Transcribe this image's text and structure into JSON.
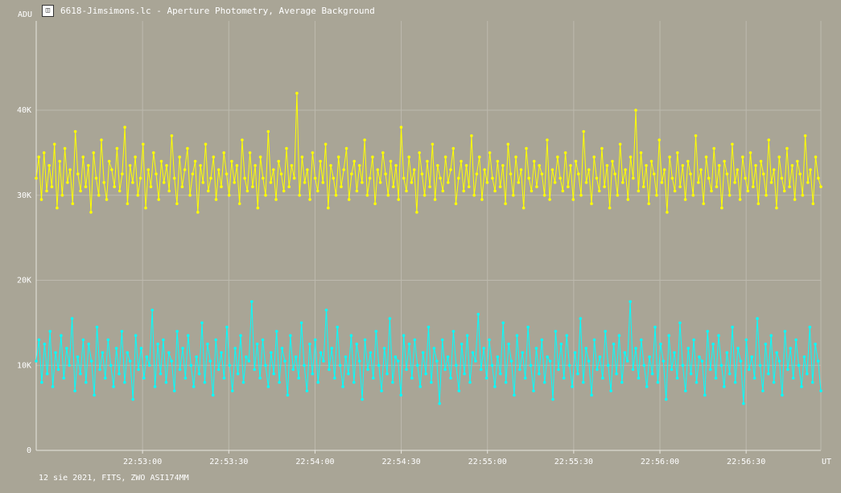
{
  "window": {
    "title": "6618-Jimsimons.lc - Aperture Photometry, Average Background",
    "icon": "lightcurve-app-icon"
  },
  "footer": "12 sie 2021, FITS, ZWO ASI174MM",
  "chart_data": {
    "type": "line",
    "title": "",
    "ylabel": "ADU",
    "xlabel": "UT",
    "ylim": [
      0,
      50500
    ],
    "xlim": [
      "22:52:23",
      "22:56:56"
    ],
    "y_ticks": [
      {
        "label": "0",
        "value": 0
      },
      {
        "label": "10K",
        "value": 10000
      },
      {
        "label": "20K",
        "value": 20000
      },
      {
        "label": "30K",
        "value": 30000
      },
      {
        "label": "40K",
        "value": 40000
      }
    ],
    "x_ticks": [
      {
        "label": "22:53:00",
        "value": "22:53:00"
      },
      {
        "label": "22:53:30",
        "value": "22:53:30"
      },
      {
        "label": "22:54:00",
        "value": "22:54:00"
      },
      {
        "label": "22:54:30",
        "value": "22:54:30"
      },
      {
        "label": "22:55:00",
        "value": "22:55:00"
      },
      {
        "label": "22:55:30",
        "value": "22:55:30"
      },
      {
        "label": "22:56:00",
        "value": "22:56:00"
      },
      {
        "label": "22:56:30",
        "value": "22:56:30"
      }
    ],
    "grid": true,
    "colors": {
      "background": "#a9a596",
      "grid": "#bdbaae",
      "axis": "#e8e6df",
      "text": "#ffffff"
    },
    "series": [
      {
        "color": "#ffff00",
        "values": [
          32000,
          34500,
          29500,
          35000,
          30500,
          33500,
          31000,
          36000,
          28500,
          34000,
          30000,
          35500,
          31500,
          33000,
          29000,
          37500,
          32500,
          30500,
          34500,
          31000,
          33500,
          28000,
          35000,
          32000,
          30000,
          36500,
          31500,
          29500,
          34000,
          33000,
          31000,
          35500,
          30500,
          32500,
          38000,
          29000,
          33500,
          31500,
          34500,
          30000,
          32000,
          36000,
          28500,
          33000,
          31000,
          35000,
          32500,
          29500,
          34000,
          31500,
          33500,
          30500,
          37000,
          32000,
          29000,
          34500,
          31000,
          33000,
          35500,
          30000,
          32500,
          34000,
          28000,
          33500,
          31500,
          36000,
          30500,
          32000,
          34500,
          29500,
          33000,
          31000,
          35000,
          32500,
          30000,
          34000,
          31500,
          33500,
          29000,
          36500,
          32000,
          30500,
          35000,
          31000,
          33500,
          28500,
          34500,
          32000,
          30000,
          37500,
          31500,
          33000,
          29500,
          34000,
          32500,
          30500,
          35500,
          31000,
          33500,
          32000,
          42000,
          30000,
          34500,
          31500,
          33000,
          29500,
          35000,
          32000,
          30500,
          34000,
          31500,
          36000,
          28500,
          33500,
          32000,
          30000,
          34500,
          31000,
          33000,
          35500,
          29500,
          32500,
          34000,
          30500,
          33500,
          31500,
          36500,
          30000,
          32000,
          34500,
          29000,
          33000,
          31500,
          35000,
          32500,
          30000,
          34000,
          31000,
          33500,
          29500,
          38000,
          32000,
          30500,
          34500,
          31500,
          33000,
          28000,
          35000,
          32500,
          30000,
          34000,
          31000,
          36000,
          29500,
          33500,
          32000,
          30500,
          34500,
          31500,
          33000,
          35500,
          29000,
          32000,
          34000,
          30500,
          33500,
          31000,
          37000,
          30000,
          32500,
          34500,
          29500,
          33000,
          31500,
          35000,
          32000,
          30500,
          34000,
          31000,
          33500,
          29000,
          36000,
          32500,
          30000,
          34500,
          31500,
          33000,
          28500,
          35500,
          32000,
          30500,
          34000,
          31000,
          33500,
          32500,
          30000,
          36500,
          29500,
          33000,
          31500,
          34500,
          32000,
          30500,
          35000,
          31000,
          33500,
          29500,
          34000,
          32500,
          30000,
          37500,
          31500,
          33000,
          29000,
          34500,
          32000,
          30500,
          35500,
          31000,
          33500,
          28500,
          34000,
          32500,
          30000,
          36000,
          31500,
          33000,
          29500,
          34500,
          32000,
          40000,
          30500,
          35000,
          31000,
          33500,
          29000,
          34000,
          32500,
          30000,
          36500,
          31500,
          33000,
          28000,
          34500,
          32000,
          30500,
          35000,
          31000,
          33500,
          29500,
          34000,
          32500,
          30000,
          37000,
          31500,
          33000,
          29000,
          34500,
          32000,
          30500,
          35500,
          31000,
          33500,
          28500,
          34000,
          32500,
          30000,
          36000,
          31500,
          33000,
          29500,
          34500,
          32000,
          30500,
          35000,
          31000,
          33500,
          29000,
          34000,
          32500,
          30000,
          36500,
          31500,
          33000,
          28500,
          34500,
          32000,
          30500,
          35500,
          31000,
          33500,
          29500,
          34000,
          32500,
          30000,
          37000,
          31500,
          33000,
          29000,
          34500,
          32000,
          31000
        ]
      },
      {
        "color": "#00ffff",
        "values": [
          10500,
          13000,
          8000,
          12500,
          9000,
          14000,
          7500,
          11500,
          9500,
          13500,
          8500,
          12000,
          10000,
          15500,
          7000,
          11000,
          9000,
          13000,
          8000,
          12500,
          10500,
          6500,
          14500,
          9500,
          11500,
          8500,
          13000,
          10000,
          7500,
          12000,
          9000,
          14000,
          8000,
          11500,
          10500,
          6000,
          13500,
          9500,
          12000,
          8500,
          11000,
          10000,
          16500,
          7500,
          12500,
          9000,
          13000,
          8000,
          11500,
          10500,
          7000,
          14000,
          9500,
          12000,
          8500,
          13500,
          10000,
          7500,
          11000,
          9000,
          15000,
          8000,
          12500,
          10500,
          6500,
          13000,
          9500,
          11500,
          8500,
          14500,
          10000,
          7000,
          12000,
          9000,
          13500,
          8000,
          11000,
          10500,
          17500,
          9500,
          12500,
          8500,
          13000,
          10000,
          7500,
          11500,
          9000,
          14000,
          8000,
          12000,
          10500,
          6500,
          13500,
          9500,
          11000,
          8500,
          15000,
          10000,
          7000,
          12500,
          9000,
          13000,
          8000,
          11500,
          10500,
          16500,
          9500,
          12000,
          8500,
          14500,
          10000,
          7500,
          11000,
          9000,
          13500,
          8000,
          12500,
          10500,
          6000,
          13000,
          9500,
          11500,
          8500,
          14000,
          10000,
          7000,
          12000,
          9000,
          15500,
          8000,
          11000,
          10500,
          6500,
          13500,
          9500,
          12500,
          8500,
          13000,
          10000,
          7500,
          11500,
          9000,
          14500,
          8000,
          12000,
          10500,
          5500,
          13000,
          9500,
          11000,
          8500,
          14000,
          10000,
          7000,
          12500,
          9000,
          13500,
          8000,
          11500,
          10500,
          16000,
          9500,
          12000,
          8500,
          13000,
          10000,
          7500,
          11000,
          9000,
          15000,
          8000,
          12500,
          10500,
          6500,
          13500,
          9500,
          11500,
          8500,
          14500,
          10000,
          7000,
          12000,
          9000,
          13000,
          8000,
          11000,
          10500,
          6000,
          14000,
          9500,
          12500,
          8500,
          13500,
          10000,
          7500,
          11500,
          9000,
          15500,
          8000,
          12000,
          10500,
          6500,
          13000,
          9500,
          11000,
          8500,
          14000,
          10000,
          7000,
          12500,
          9000,
          13500,
          8000,
          11500,
          10500,
          17500,
          9500,
          12000,
          8500,
          13000,
          10000,
          7500,
          11000,
          9000,
          14500,
          8000,
          12500,
          10500,
          6000,
          13500,
          9500,
          11500,
          8500,
          15000,
          10000,
          7000,
          12000,
          9000,
          13000,
          8000,
          11000,
          10500,
          6500,
          14000,
          9500,
          12500,
          8500,
          13500,
          10000,
          7500,
          11500,
          9000,
          14500,
          8000,
          12000,
          10500,
          5500,
          13000,
          9500,
          11000,
          8500,
          15500,
          10000,
          7000,
          12500,
          9000,
          13500,
          8000,
          11500,
          10500,
          6500,
          14000,
          9500,
          12000,
          8500,
          13000,
          10000,
          7500,
          11000,
          9000,
          14500,
          8000,
          12500,
          10500,
          7000
        ]
      }
    ]
  }
}
